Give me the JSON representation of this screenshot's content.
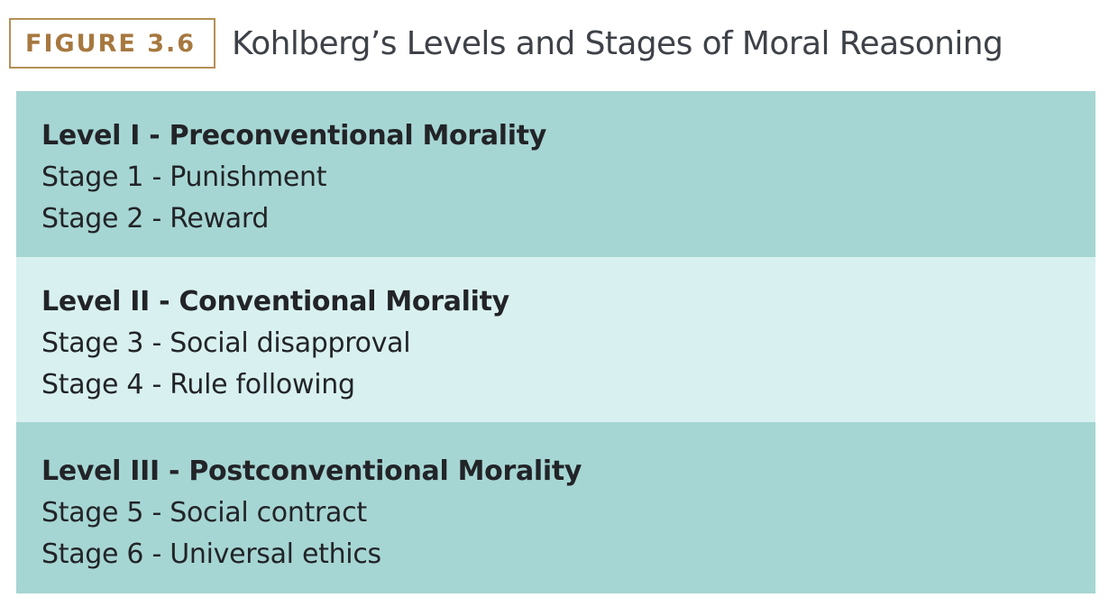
{
  "figure": {
    "label": "FIGURE 3.6",
    "title": "Kohlberg’s Levels and Stages of Moral Reasoning"
  },
  "levels": [
    {
      "heading": "Level I - Preconventional Morality",
      "stages": [
        "Stage 1 - Punishment",
        "Stage 2 - Reward"
      ],
      "color": "#a6d6d3"
    },
    {
      "heading": "Level II - Conventional Morality",
      "stages": [
        "Stage 3 - Social disapproval",
        "Stage 4 - Rule following"
      ],
      "color": "#d8f1f0"
    },
    {
      "heading": "Level III - Postconventional Morality",
      "stages": [
        "Stage 5 - Social contract",
        "Stage 6 - Universal ethics"
      ],
      "color": "#a6d6d3"
    }
  ],
  "colors": {
    "label_border": "#b49056",
    "label_text": "#a6783f",
    "title_text": "#3e4248",
    "body_text": "#222428"
  }
}
